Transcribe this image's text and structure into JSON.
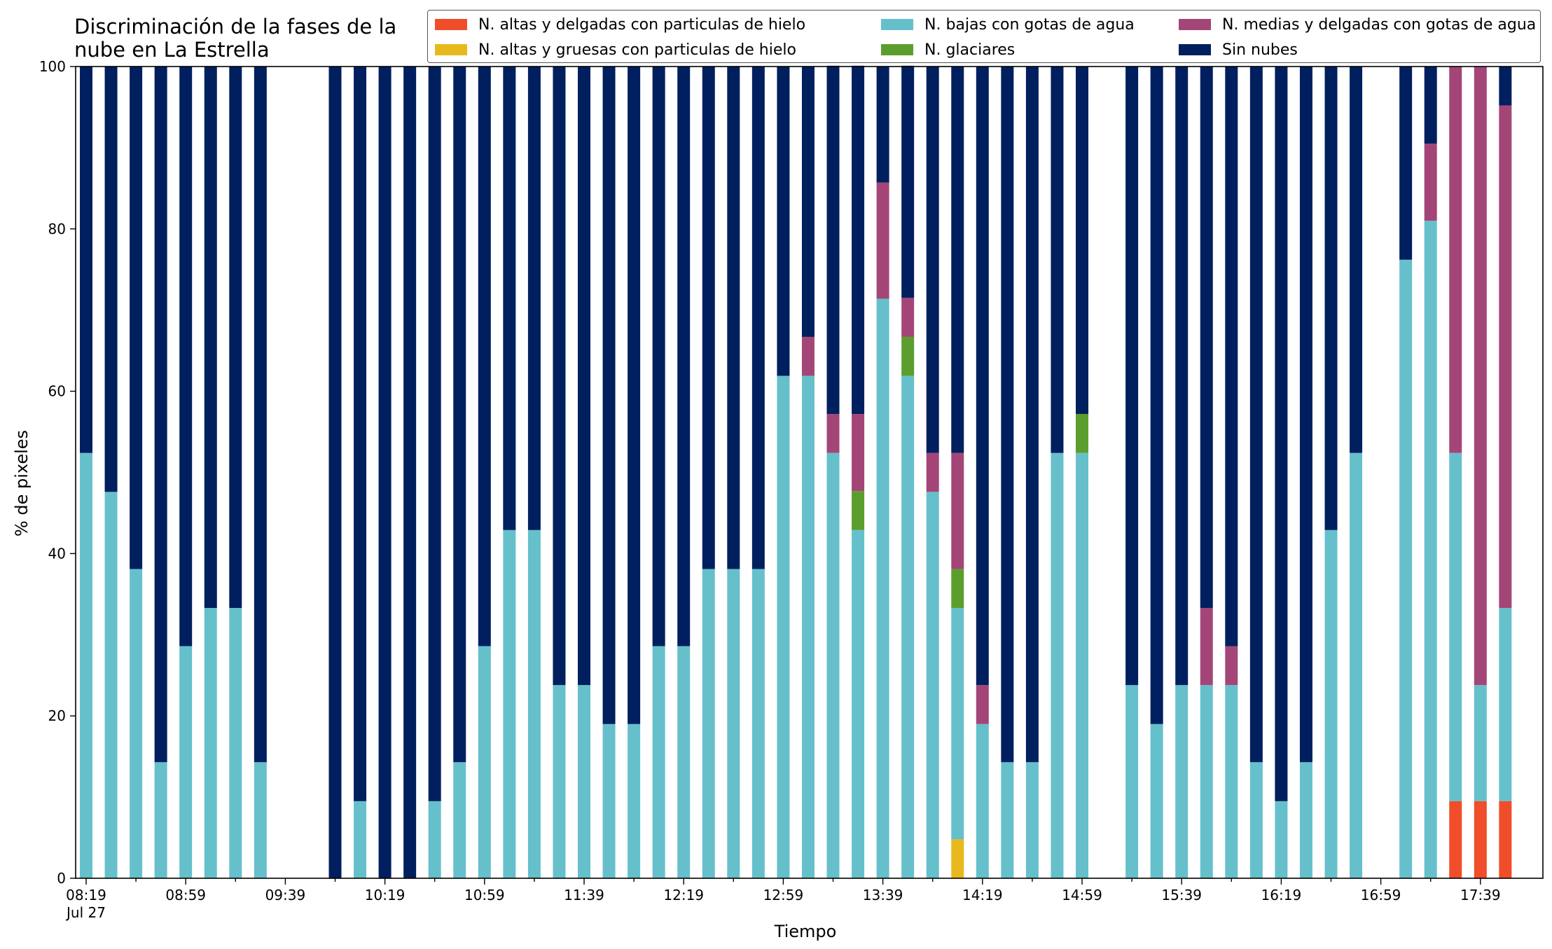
{
  "chart_data": {
    "type": "bar",
    "stacked": true,
    "title": "Discriminación de la fases de la nube en La Estrella",
    "xlabel": "Tiempo",
    "ylabel": "% de pixeles",
    "ylim": [
      0,
      100
    ],
    "yticks": [
      0,
      20,
      40,
      60,
      80,
      100
    ],
    "xtick_labels": [
      "08:19\nJul 27",
      "08:59",
      "09:39",
      "10:19",
      "10:59",
      "11:39",
      "12:19",
      "12:59",
      "13:39",
      "14:19",
      "14:59",
      "15:39",
      "16:19",
      "16:59",
      "17:39"
    ],
    "legend_position": "top-right",
    "grid": false,
    "categories": [
      "08:19",
      "08:29",
      "08:39",
      "08:49",
      "08:59",
      "09:09",
      "09:19",
      "09:29",
      "09:39",
      "09:49",
      "09:59",
      "10:09",
      "10:19",
      "10:29",
      "10:39",
      "10:49",
      "10:59",
      "11:09",
      "11:19",
      "11:29",
      "11:39",
      "11:49",
      "11:59",
      "12:09",
      "12:19",
      "12:29",
      "12:39",
      "12:49",
      "12:59",
      "13:09",
      "13:19",
      "13:29",
      "13:39",
      "13:49",
      "13:59",
      "14:09",
      "14:19",
      "14:29",
      "14:39",
      "14:49",
      "14:59",
      "15:09",
      "15:19",
      "15:29",
      "15:39",
      "15:49",
      "15:59",
      "16:09",
      "16:19",
      "16:29",
      "16:39",
      "16:49",
      "16:59",
      "17:09",
      "17:19",
      "17:29",
      "17:39",
      "17:49"
    ],
    "series": [
      {
        "name": "N. altas y delgadas con particulas de hielo",
        "color": "#f04d2b",
        "values": [
          0,
          0,
          0,
          0,
          0,
          0,
          0,
          0,
          0,
          0,
          0,
          0,
          0,
          0,
          0,
          0,
          0,
          0,
          0,
          0,
          0,
          0,
          0,
          0,
          0,
          0,
          0,
          0,
          0,
          0,
          0,
          0,
          0,
          0,
          0,
          0,
          0,
          0,
          0,
          0,
          0,
          0,
          0,
          0,
          0,
          0,
          0,
          0,
          0,
          0,
          0,
          0,
          0,
          0,
          0,
          9.5,
          9.5,
          9.5
        ]
      },
      {
        "name": "N. altas y gruesas con particulas de hielo",
        "color": "#e8b91c",
        "values": [
          0,
          0,
          0,
          0,
          0,
          0,
          0,
          0,
          0,
          0,
          0,
          0,
          0,
          0,
          0,
          0,
          0,
          0,
          0,
          0,
          0,
          0,
          0,
          0,
          0,
          0,
          0,
          0,
          0,
          0,
          0,
          0,
          0,
          0,
          0,
          4.8,
          0,
          0,
          0,
          0,
          0,
          0,
          0,
          0,
          0,
          0,
          0,
          0,
          0,
          0,
          0,
          0,
          0,
          0,
          0,
          0,
          0,
          0
        ]
      },
      {
        "name": "N. bajas con gotas de agua",
        "color": "#66c0cb",
        "values": [
          52.4,
          47.6,
          38.1,
          14.3,
          28.6,
          33.3,
          33.3,
          14.3,
          0,
          0,
          0,
          9.5,
          0,
          0,
          9.5,
          14.3,
          28.6,
          42.9,
          42.9,
          23.8,
          23.8,
          19.0,
          19.0,
          28.6,
          28.6,
          38.1,
          38.1,
          38.1,
          61.9,
          61.9,
          52.4,
          42.9,
          71.4,
          61.9,
          47.6,
          28.5,
          19.0,
          14.3,
          14.3,
          52.4,
          52.4,
          0,
          23.8,
          19.0,
          23.8,
          23.8,
          23.8,
          14.3,
          9.5,
          14.3,
          42.9,
          52.4,
          0,
          76.2,
          81.0,
          42.9,
          14.3,
          23.8
        ]
      },
      {
        "name": "N. glaciares",
        "color": "#5c9e2e",
        "values": [
          0,
          0,
          0,
          0,
          0,
          0,
          0,
          0,
          0,
          0,
          0,
          0,
          0,
          0,
          0,
          0,
          0,
          0,
          0,
          0,
          0,
          0,
          0,
          0,
          0,
          0,
          0,
          0,
          0,
          0,
          0,
          4.8,
          0,
          4.8,
          0,
          4.8,
          0,
          0,
          0,
          0,
          4.8,
          0,
          0,
          0,
          0,
          0,
          0,
          0,
          0,
          0,
          0,
          0,
          0,
          0,
          0,
          0,
          0,
          0
        ]
      },
      {
        "name": "N. medias y delgadas con gotas de agua",
        "color": "#a34677",
        "values": [
          0,
          0,
          0,
          0,
          0,
          0,
          0,
          0,
          0,
          0,
          0,
          0,
          0,
          0,
          0,
          0,
          0,
          0,
          0,
          0,
          0,
          0,
          0,
          0,
          0,
          0,
          0,
          0,
          0,
          4.8,
          4.8,
          9.5,
          14.3,
          4.8,
          4.8,
          14.3,
          4.8,
          0,
          0,
          0,
          0,
          0,
          0,
          0,
          0,
          9.5,
          4.8,
          0,
          0,
          0,
          0,
          0,
          0,
          0,
          9.5,
          47.6,
          76.2,
          61.9
        ]
      },
      {
        "name": "Sin nubes",
        "color": "#001f5f",
        "values": [
          47.6,
          52.4,
          61.9,
          85.7,
          71.4,
          66.7,
          66.7,
          85.7,
          0,
          0,
          100,
          90.5,
          100,
          100,
          90.5,
          85.7,
          71.4,
          57.1,
          57.1,
          76.2,
          76.2,
          81.0,
          81.0,
          71.4,
          71.4,
          61.9,
          61.9,
          61.9,
          38.1,
          33.3,
          42.9,
          42.9,
          14.3,
          28.6,
          47.6,
          47.6,
          76.2,
          85.7,
          85.7,
          47.6,
          42.8,
          0,
          76.2,
          81.0,
          76.2,
          66.7,
          71.4,
          85.7,
          90.5,
          85.7,
          57.1,
          47.6,
          0,
          23.8,
          9.5,
          0,
          0,
          4.8
        ]
      }
    ]
  }
}
